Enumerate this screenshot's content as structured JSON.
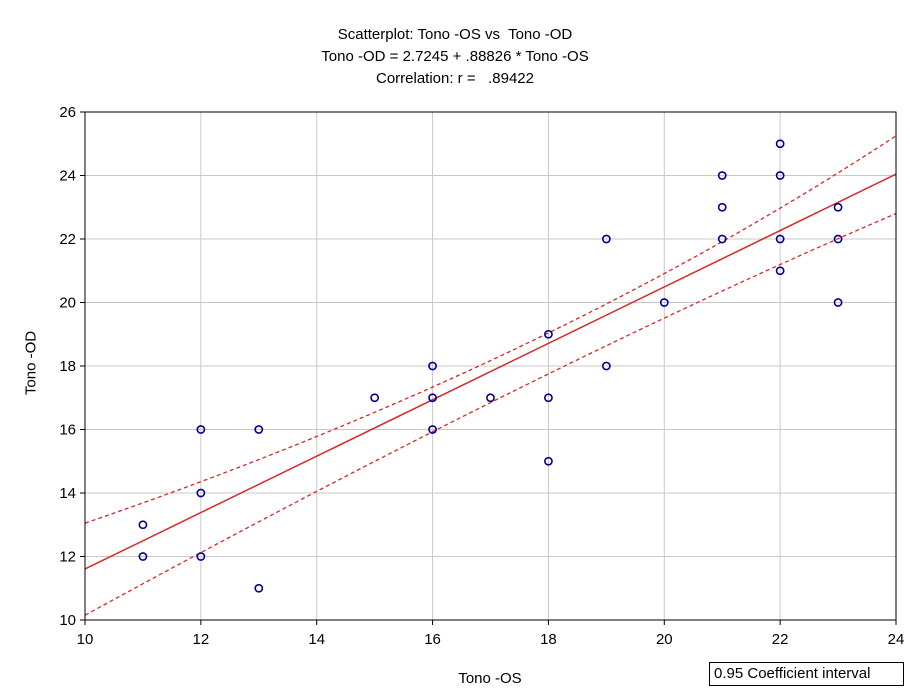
{
  "chart_data": {
    "type": "scatter",
    "title": "Scatterplot: Tono -OS vs  Tono -OD",
    "subtitle_equation": "Tono -OD = 2.7245 + .88826 * Tono -OS",
    "subtitle_correlation": "Correlation: r =   .89422",
    "xlabel": "Tono -OS",
    "ylabel": "Tono -OD",
    "xlim": [
      10,
      24
    ],
    "ylim": [
      10,
      26
    ],
    "x_ticks": [
      10,
      12,
      14,
      16,
      18,
      20,
      22,
      24
    ],
    "y_ticks": [
      10,
      12,
      14,
      16,
      18,
      20,
      22,
      24,
      26
    ],
    "grid": true,
    "legend_text": "0.95 Coefficient interval",
    "legend_placement": "bottom-right",
    "points": [
      {
        "x": 11,
        "y": 13
      },
      {
        "x": 11,
        "y": 12
      },
      {
        "x": 12,
        "y": 16
      },
      {
        "x": 12,
        "y": 14
      },
      {
        "x": 12,
        "y": 12
      },
      {
        "x": 13,
        "y": 16
      },
      {
        "x": 13,
        "y": 11
      },
      {
        "x": 15,
        "y": 17
      },
      {
        "x": 16,
        "y": 18
      },
      {
        "x": 16,
        "y": 17
      },
      {
        "x": 16,
        "y": 16
      },
      {
        "x": 17,
        "y": 17
      },
      {
        "x": 18,
        "y": 19
      },
      {
        "x": 18,
        "y": 17
      },
      {
        "x": 18,
        "y": 15
      },
      {
        "x": 19,
        "y": 22
      },
      {
        "x": 19,
        "y": 18
      },
      {
        "x": 20,
        "y": 20
      },
      {
        "x": 21,
        "y": 24
      },
      {
        "x": 21,
        "y": 23
      },
      {
        "x": 21,
        "y": 22
      },
      {
        "x": 22,
        "y": 25
      },
      {
        "x": 22,
        "y": 24
      },
      {
        "x": 22,
        "y": 22
      },
      {
        "x": 22,
        "y": 21
      },
      {
        "x": 23,
        "y": 23
      },
      {
        "x": 23,
        "y": 22
      },
      {
        "x": 23,
        "y": 20
      }
    ],
    "regression": {
      "intercept": 2.7245,
      "slope": 0.88826
    },
    "confidence_band": {
      "upper": [
        {
          "x": 10,
          "y": 13.05
        },
        {
          "x": 17.5,
          "y": 18.6
        },
        {
          "x": 24,
          "y": 25.25
        }
      ],
      "lower": [
        {
          "x": 10,
          "y": 10.15
        },
        {
          "x": 17.5,
          "y": 17.3
        },
        {
          "x": 24,
          "y": 22.8
        }
      ]
    },
    "colors": {
      "points": "#00008b",
      "regression_line": "#d62828",
      "confidence_lines": "#d62828",
      "grid": "#c8c8c8",
      "axes": "#000000"
    }
  }
}
